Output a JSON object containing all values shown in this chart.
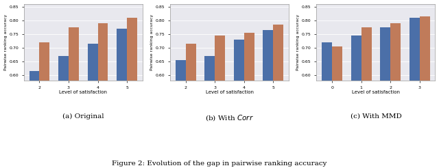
{
  "subplots": [
    {
      "title": "(a) Original",
      "ylabel": "Pairwise ranking accuracy",
      "xlabel": "Level of satisfaction",
      "xtick_labels": [
        "2",
        "3",
        "4",
        "5"
      ],
      "blue_values": [
        0.615,
        0.67,
        0.715,
        0.77
      ],
      "orange_values": [
        0.72,
        0.775,
        0.79,
        0.81
      ]
    },
    {
      "title": "(b) With $\\mathit{Corr}$",
      "ylabel": "Pairwise ranking accuracy",
      "xlabel": "Level of satisfaction",
      "xtick_labels": [
        "2",
        "3",
        "4",
        "5"
      ],
      "blue_values": [
        0.655,
        0.67,
        0.73,
        0.765
      ],
      "orange_values": [
        0.715,
        0.745,
        0.755,
        0.785
      ]
    },
    {
      "title": "(c) With MMD",
      "ylabel": "Pairwise ranking accuracy",
      "xlabel": "Level of satisfaction",
      "xtick_labels": [
        "0",
        "1",
        "2",
        "3"
      ],
      "blue_values": [
        0.72,
        0.745,
        0.775,
        0.81
      ],
      "orange_values": [
        0.705,
        0.775,
        0.79,
        0.815
      ]
    }
  ],
  "blue_color": "#4B6FA8",
  "orange_color": "#C07B5A",
  "bg_color": "#E8E8EE",
  "fig_caption": "Figure 2: Evolution of the gap in pairwise ranking accuracy",
  "bar_width": 0.35,
  "ylim": [
    0.58,
    0.86
  ],
  "ytick_vals": [
    0.6,
    0.65,
    0.7,
    0.75,
    0.8,
    0.85
  ]
}
